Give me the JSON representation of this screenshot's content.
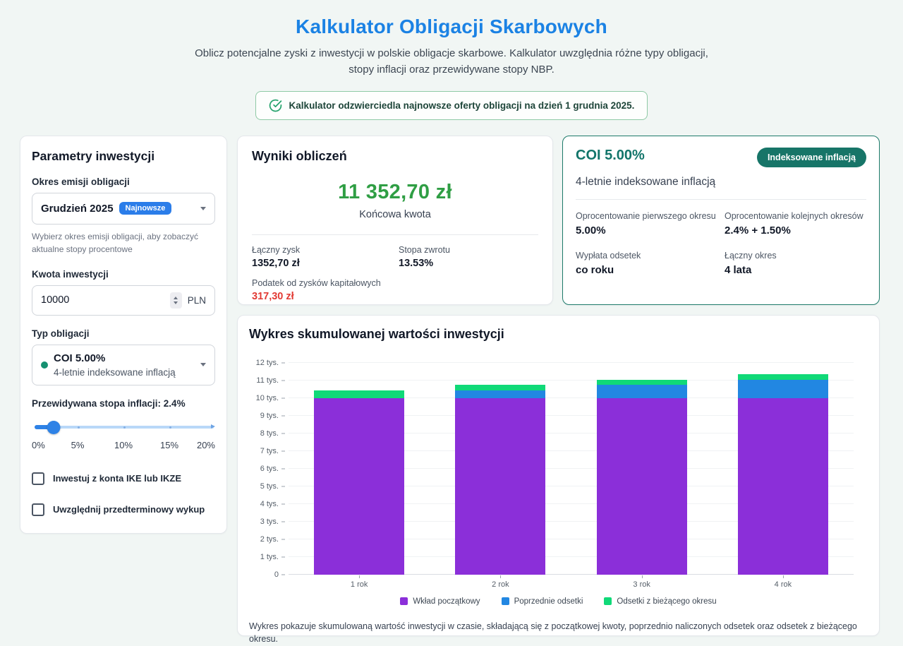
{
  "header": {
    "title": "Kalkulator Obligacji Skarbowych",
    "subtitle": "Oblicz potencjalne zyski z inwestycji w polskie obligacje skarbowe. Kalkulator uwzględnia różne typy obligacji, stopy inflacji oraz przewidywane stopy NBP.",
    "banner": "Kalkulator odzwierciedla najnowsze oferty obligacji na dzień 1 grudnia 2025."
  },
  "parameters": {
    "title": "Parametry inwestycji",
    "emission_label": "Okres emisji obligacji",
    "emission_value": "Grudzień 2025",
    "emission_badge": "Najnowsze",
    "emission_help": "Wybierz okres emisji obligacji, aby zobaczyć aktualne stopy procentowe",
    "amount_label": "Kwota inwestycji",
    "amount_value": "10000",
    "amount_currency": "PLN",
    "bond_type_label": "Typ obligacji",
    "bond_type_value": "COI 5.00%",
    "bond_type_desc": "4-letnie indeksowane inflacją",
    "inflation_label": "Przewidywana stopa inflacji: 2.4%",
    "slider_value_pct": 12,
    "slider_ticks": [
      "0%",
      "5%",
      "10%",
      "15%",
      "20%"
    ],
    "checkbox_ike": "Inwestuj z konta IKE lub IKZE",
    "checkbox_early": "Uwzględnij przedterminowy wykup"
  },
  "results": {
    "title": "Wyniki obliczeń",
    "final_amount": "11 352,70 zł",
    "final_label": "Końcowa kwota",
    "profit_label": "Łączny zysk",
    "profit_value": "1352,70 zł",
    "return_label": "Stopa zwrotu",
    "return_value": "13.53%",
    "tax_label": "Podatek od zysków kapitałowych",
    "tax_value": "317,30 zł"
  },
  "bond_card": {
    "title": "COI 5.00%",
    "badge": "Indeksowane inflacją",
    "subtitle": "4-letnie indeksowane inflacją",
    "fields": [
      {
        "label": "Oprocentowanie pierwszego okresu",
        "value": "5.00%"
      },
      {
        "label": "Oprocentowanie kolejnych okresów",
        "value": "2.4% + 1.50%"
      },
      {
        "label": "Wypłata odsetek",
        "value": "co roku"
      },
      {
        "label": "Łączny okres",
        "value": "4 lata"
      }
    ]
  },
  "chart_data": {
    "type": "bar",
    "stacked": true,
    "title": "Wykres skumulowanej wartości inwestycji",
    "categories": [
      "1 rok",
      "2 rok",
      "3 rok",
      "4 rok"
    ],
    "series": [
      {
        "name": "Wkład początkowy",
        "color": "#8b2fd9",
        "values": [
          10000,
          10000,
          10000,
          10000
        ]
      },
      {
        "name": "Poprzednie odsetki",
        "color": "#2287e2",
        "values": [
          0,
          405,
          720.9,
          1036.8
        ]
      },
      {
        "name": "Odsetki z bieżącego okresu",
        "color": "#10d978",
        "values": [
          405,
          315.9,
          315.9,
          315.9
        ]
      }
    ],
    "ylim": [
      0,
      12000
    ],
    "ytick_step": 1000,
    "ytick_suffix": " tys.",
    "grid": true,
    "legend_position": "bottom",
    "footer": "Wykres pokazuje skumulowaną wartość inwestycji w czasie, składającą się z początkowej kwoty, poprzednio naliczonych odsetek oraz odsetek z bieżącego okresu."
  },
  "colors": {
    "accent_blue": "#1b82e4",
    "badge_blue": "#2b7de9",
    "positive_green": "#2f9e44",
    "negative_red": "#e23a34",
    "teal": "#12756a",
    "banner_border_green": "#8fcaa5",
    "chart_purple": "#8b2fd9",
    "chart_blue": "#2287e2",
    "chart_green": "#10d978"
  }
}
